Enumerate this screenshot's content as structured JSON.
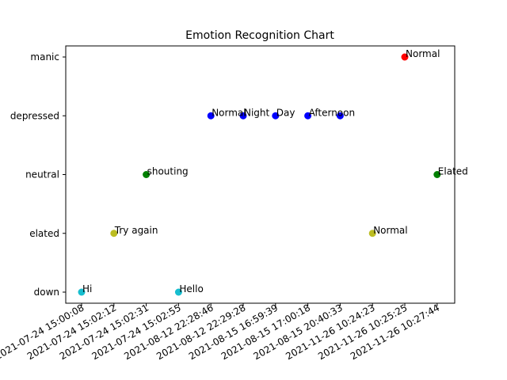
{
  "chart_data": {
    "type": "scatter",
    "title": "Emotion Recognition Chart",
    "xlabel": "",
    "ylabel": "",
    "x_categories": [
      "2021-07-24 15:00:08",
      "2021-07-24 15:02:12",
      "2021-07-24 15:02:31",
      "2021-07-24 15:02:55",
      "2021-08-12 22:28:46",
      "2021-08-12 22:29:28",
      "2021-08-15 16:59:39",
      "2021-08-15 17:00:18",
      "2021-08-15 20:40:33",
      "2021-11-26 10:24:23",
      "2021-11-26 10:25:25",
      "2021-11-26 10:27:44"
    ],
    "y_categories": [
      "down",
      "elated",
      "neutral",
      "depressed",
      "manic"
    ],
    "grid": false,
    "points": [
      {
        "x": "2021-07-24 15:00:08",
        "y": "down",
        "label": "Hi",
        "color": "#17becf"
      },
      {
        "x": "2021-07-24 15:02:12",
        "y": "elated",
        "label": "Try again",
        "color": "#bcbd22"
      },
      {
        "x": "2021-07-24 15:02:31",
        "y": "neutral",
        "label": "shouting",
        "color": "#008000"
      },
      {
        "x": "2021-07-24 15:02:55",
        "y": "down",
        "label": "Hello",
        "color": "#17becf"
      },
      {
        "x": "2021-08-12 22:28:46",
        "y": "depressed",
        "label": "Normal",
        "color": "#0000ff"
      },
      {
        "x": "2021-08-12 22:29:28",
        "y": "depressed",
        "label": "Night",
        "color": "#0000ff"
      },
      {
        "x": "2021-08-15 16:59:39",
        "y": "depressed",
        "label": "Day",
        "color": "#0000ff"
      },
      {
        "x": "2021-08-15 17:00:18",
        "y": "depressed",
        "label": "Afternoon",
        "color": "#0000ff"
      },
      {
        "x": "2021-08-15 20:40:33",
        "y": "depressed",
        "label": "",
        "color": "#0000ff"
      },
      {
        "x": "2021-11-26 10:24:23",
        "y": "elated",
        "label": "Normal",
        "color": "#bcbd22"
      },
      {
        "x": "2021-11-26 10:25:25",
        "y": "manic",
        "label": "Normal",
        "color": "#ff0000"
      },
      {
        "x": "2021-11-26 10:27:44",
        "y": "neutral",
        "label": "Elated",
        "color": "#008000"
      }
    ]
  }
}
